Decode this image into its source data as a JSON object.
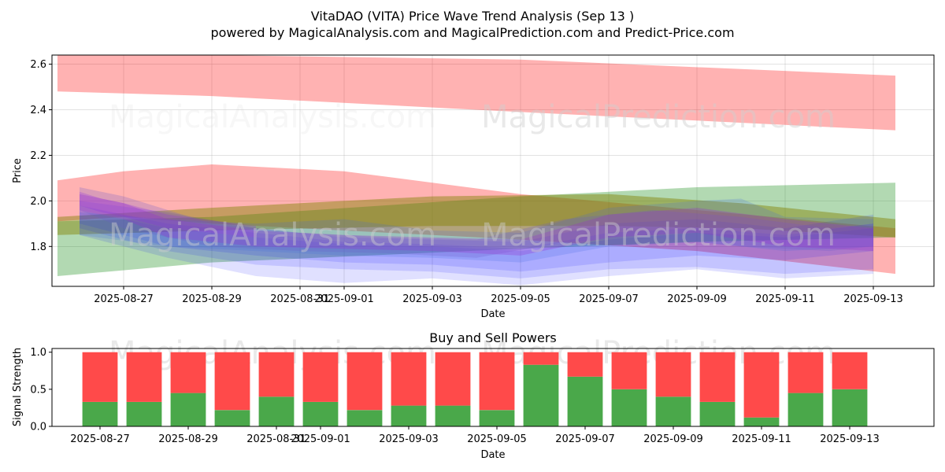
{
  "figure": {
    "title_line1": "VitaDAO (VITA) Price Wave Trend Analysis (Sep 13 )",
    "title_line2": "powered by MagicalAnalysis.com and MagicalPrediction.com and Predict-Price.com",
    "watermark_left": "MagicalAnalysis.com",
    "watermark_right": "MagicalPrediction.com"
  },
  "chart_data": [
    {
      "type": "area",
      "xlabel": "Date",
      "ylabel": "Price",
      "ylim": [
        1.625,
        2.64
      ],
      "xlim": [
        "2025-08-25T09:00",
        "2025-09-14T09:00"
      ],
      "yticks": [
        1.8,
        2.0,
        2.2,
        2.4,
        2.6
      ],
      "xticks": [
        "2025-08-27",
        "2025-08-29",
        "2025-08-31",
        "2025-09-01",
        "2025-09-03",
        "2025-09-05",
        "2025-09-07",
        "2025-09-09",
        "2025-09-11",
        "2025-09-13"
      ],
      "grid": true,
      "bands": [
        {
          "color": "#ff0000",
          "opacity": 0.3,
          "x": [
            "2025-08-25T12:00",
            "2025-08-29",
            "2025-09-05",
            "2025-09-13T12:00"
          ],
          "upper": [
            2.64,
            2.64,
            2.62,
            2.55
          ],
          "lower": [
            2.48,
            2.46,
            2.39,
            2.31
          ]
        },
        {
          "color": "#ff0000",
          "opacity": 0.3,
          "x": [
            "2025-08-25T12:00",
            "2025-08-27",
            "2025-08-29",
            "2025-09-01",
            "2025-09-03",
            "2025-09-05",
            "2025-09-09",
            "2025-09-13T12:00"
          ],
          "upper": [
            2.09,
            2.13,
            2.16,
            2.13,
            2.08,
            2.03,
            1.96,
            1.88
          ],
          "lower": [
            1.91,
            1.93,
            1.9,
            1.87,
            1.85,
            1.83,
            1.78,
            1.68
          ]
        },
        {
          "color": "#008000",
          "opacity": 0.3,
          "x": [
            "2025-08-25T12:00",
            "2025-08-29",
            "2025-09-05",
            "2025-09-09",
            "2025-09-13T12:00"
          ],
          "upper": [
            1.91,
            1.93,
            2.02,
            2.06,
            2.08
          ],
          "lower": [
            1.67,
            1.73,
            1.79,
            1.82,
            1.84
          ]
        },
        {
          "color": "#808000",
          "opacity": 0.45,
          "x": [
            "2025-08-25T12:00",
            "2025-08-29",
            "2025-09-03",
            "2025-09-07",
            "2025-09-10",
            "2025-09-13T12:00"
          ],
          "upper": [
            1.93,
            1.97,
            2.02,
            2.03,
            1.99,
            1.92
          ],
          "lower": [
            1.85,
            1.87,
            1.89,
            1.89,
            1.88,
            1.84
          ]
        },
        {
          "color": "#0000ff",
          "opacity": 0.12,
          "x": [
            "2025-08-26",
            "2025-08-28",
            "2025-08-30",
            "2025-09-01",
            "2025-09-03",
            "2025-09-05",
            "2025-09-07",
            "2025-09-09",
            "2025-09-11",
            "2025-09-13"
          ],
          "upper": [
            2.0,
            1.95,
            1.88,
            1.84,
            1.83,
            1.82,
            1.9,
            1.92,
            1.88,
            1.94
          ],
          "lower": [
            1.88,
            1.78,
            1.72,
            1.7,
            1.69,
            1.66,
            1.7,
            1.71,
            1.68,
            1.7
          ]
        },
        {
          "color": "#0000ff",
          "opacity": 0.12,
          "x": [
            "2025-08-26",
            "2025-08-28",
            "2025-08-30",
            "2025-09-01",
            "2025-09-03",
            "2025-09-05",
            "2025-09-07",
            "2025-09-09",
            "2025-09-11",
            "2025-09-13"
          ],
          "upper": [
            1.98,
            1.9,
            1.86,
            1.82,
            1.81,
            1.79,
            1.86,
            1.88,
            1.85,
            1.9
          ],
          "lower": [
            1.85,
            1.75,
            1.67,
            1.64,
            1.66,
            1.63,
            1.67,
            1.7,
            1.66,
            1.68
          ]
        },
        {
          "color": "#0000ff",
          "opacity": 0.12,
          "x": [
            "2025-08-26",
            "2025-08-28",
            "2025-08-30",
            "2025-09-01",
            "2025-09-03",
            "2025-09-05",
            "2025-09-07",
            "2025-09-09",
            "2025-09-11",
            "2025-09-13"
          ],
          "upper": [
            1.96,
            1.88,
            1.84,
            1.81,
            1.8,
            1.78,
            1.83,
            1.86,
            1.84,
            1.88
          ],
          "lower": [
            1.9,
            1.8,
            1.76,
            1.73,
            1.72,
            1.69,
            1.73,
            1.76,
            1.74,
            1.78
          ]
        },
        {
          "color": "#4169e1",
          "opacity": 0.2,
          "x": [
            "2025-08-26",
            "2025-08-28",
            "2025-08-30",
            "2025-09-01",
            "2025-09-03",
            "2025-09-05",
            "2025-09-07",
            "2025-09-09",
            "2025-09-10",
            "2025-09-11",
            "2025-09-13"
          ],
          "upper": [
            1.95,
            1.92,
            1.9,
            1.92,
            1.87,
            1.86,
            1.97,
            2.0,
            2.01,
            1.93,
            1.92
          ],
          "lower": [
            1.85,
            1.8,
            1.78,
            1.76,
            1.75,
            1.73,
            1.8,
            1.82,
            1.8,
            1.78,
            1.8
          ]
        },
        {
          "color": "#6a5acd",
          "opacity": 0.25,
          "x": [
            "2025-08-26",
            "2025-08-27",
            "2025-08-29",
            "2025-08-31",
            "2025-09-02",
            "2025-09-04",
            "2025-09-06",
            "2025-09-08",
            "2025-09-10",
            "2025-09-12",
            "2025-09-13"
          ],
          "upper": [
            2.06,
            2.02,
            1.9,
            1.86,
            1.84,
            1.83,
            1.92,
            1.96,
            1.93,
            1.88,
            1.9
          ],
          "lower": [
            1.96,
            1.88,
            1.8,
            1.78,
            1.77,
            1.75,
            1.82,
            1.84,
            1.8,
            1.78,
            1.8
          ]
        },
        {
          "color": "#9932cc",
          "opacity": 0.3,
          "x": [
            "2025-08-26",
            "2025-08-27",
            "2025-08-28",
            "2025-08-30",
            "2025-09-01",
            "2025-09-03",
            "2025-09-05",
            "2025-09-07",
            "2025-09-09",
            "2025-09-11",
            "2025-09-13"
          ],
          "upper": [
            2.03,
            1.99,
            1.92,
            1.87,
            1.85,
            1.84,
            1.83,
            1.94,
            1.97,
            1.92,
            1.88
          ],
          "lower": [
            1.96,
            1.92,
            1.84,
            1.8,
            1.79,
            1.78,
            1.76,
            1.84,
            1.86,
            1.8,
            1.78
          ]
        },
        {
          "color": "#8a2be2",
          "opacity": 0.25,
          "x": [
            "2025-08-26",
            "2025-08-26T12:00",
            "2025-08-27",
            "2025-08-28",
            "2025-08-30"
          ],
          "upper": [
            2.04,
            2.01,
            1.99,
            1.94,
            1.89
          ],
          "lower": [
            1.98,
            1.95,
            1.93,
            1.88,
            1.84
          ]
        }
      ]
    },
    {
      "type": "bar",
      "title": "Buy and Sell Powers",
      "xlabel": "Date",
      "ylabel": "Signal Strength",
      "ylim": [
        0,
        1.05
      ],
      "yticks": [
        0.0,
        0.5,
        1.0
      ],
      "xticks": [
        "2025-08-27",
        "2025-08-29",
        "2025-08-31",
        "2025-09-01",
        "2025-09-03",
        "2025-09-05",
        "2025-09-07",
        "2025-09-09",
        "2025-09-11",
        "2025-09-13"
      ],
      "buy_color": "#4aa84a",
      "sell_color": "#ff4a4a",
      "x": [
        "2025-08-27",
        "2025-08-28",
        "2025-08-29",
        "2025-08-30",
        "2025-08-31",
        "2025-09-01",
        "2025-09-02",
        "2025-09-03",
        "2025-09-04",
        "2025-09-05",
        "2025-09-06",
        "2025-09-07",
        "2025-09-08",
        "2025-09-09",
        "2025-09-10",
        "2025-09-11",
        "2025-09-12",
        "2025-09-13"
      ],
      "series": [
        {
          "values": [
            0.33,
            0.33,
            0.45,
            0.22,
            0.4,
            0.33,
            0.22,
            0.28,
            0.28,
            0.22,
            0.83,
            0.67,
            0.5,
            0.4,
            0.33,
            0.12,
            0.45,
            0.5
          ]
        },
        {
          "values": [
            0.67,
            0.67,
            0.55,
            0.78,
            0.6,
            0.67,
            0.78,
            0.72,
            0.72,
            0.78,
            0.17,
            0.33,
            0.5,
            0.6,
            0.67,
            0.88,
            0.55,
            0.5
          ]
        }
      ]
    }
  ]
}
